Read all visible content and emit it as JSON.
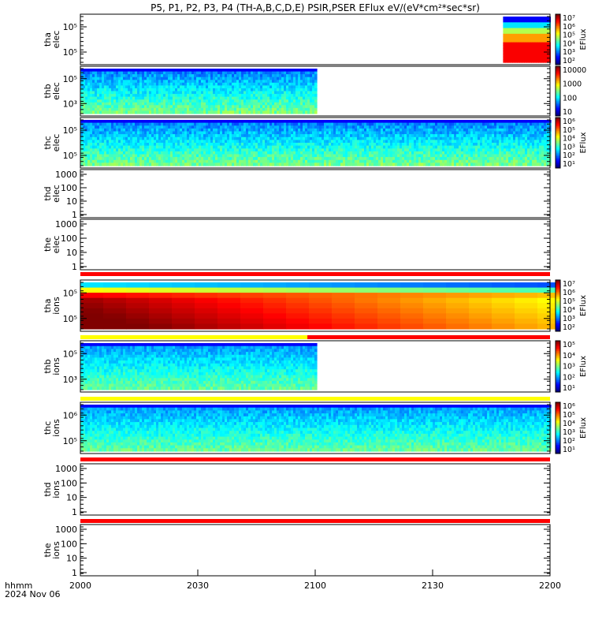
{
  "title": "P5, P1, P2, P3, P4 (TH-A,B,C,D,E) PSIR,PSER EFlux eV/(eV*cm²*sec*sr)",
  "chart_data": {
    "type": "heatmap",
    "title": "P5, P1, P2, P3, P4 (TH-A,B,C,D,E) PSIR,PSER EFlux eV/(eV*cm²*sec*sr)",
    "x": {
      "label_unit": "hhmm",
      "date": "2024 Nov 06",
      "ticks": [
        "2000",
        "2030",
        "2100",
        "2130",
        "2200"
      ]
    },
    "panels": [
      {
        "label1": "tha",
        "label2": "elec",
        "ticks": [
          "10⁵",
          "10⁵"
        ],
        "colorbar_ticks": [
          "10⁷",
          "10⁶",
          "10⁵",
          "10⁴",
          "10³",
          "10²"
        ],
        "colorbar_label": "EFlux",
        "data_coverage": "2148-2200",
        "status_bar": "none"
      },
      {
        "label1": "thb",
        "label2": "elec",
        "ticks": [
          "10⁵",
          "10³"
        ],
        "colorbar_ticks": [
          "10000",
          "1000",
          "100",
          "10"
        ],
        "colorbar_label": "",
        "data_coverage": "2000-2100",
        "status_bar": "none"
      },
      {
        "label1": "thc",
        "label2": "elec",
        "ticks": [
          "10⁵",
          "10⁵"
        ],
        "colorbar_ticks": [
          "10⁶",
          "10⁵",
          "10⁴",
          "10³",
          "10²",
          "10¹"
        ],
        "colorbar_label": "EFlux",
        "data_coverage": "2000-2200",
        "status_bar": "none"
      },
      {
        "label1": "thd",
        "label2": "elec",
        "ticks": [
          "1000",
          "100",
          "10",
          "1"
        ],
        "colorbar_ticks": [],
        "colorbar_label": "",
        "data_coverage": "none",
        "status_bar": "none"
      },
      {
        "label1": "the",
        "label2": "elec",
        "ticks": [
          "1000",
          "100",
          "10",
          "1"
        ],
        "colorbar_ticks": [],
        "colorbar_label": "",
        "data_coverage": "none",
        "status_bar": "red"
      },
      {
        "label1": "tha",
        "label2": "ions",
        "ticks": [
          "10⁵",
          "10⁵"
        ],
        "colorbar_ticks": [
          "10⁷",
          "10⁶",
          "10⁵",
          "10⁴",
          "10³",
          "10²"
        ],
        "colorbar_label": "EFlux",
        "data_coverage": "2000-2200",
        "status_bar": "yellow then red"
      },
      {
        "label1": "thb",
        "label2": "ions",
        "ticks": [
          "10⁵",
          "10³"
        ],
        "colorbar_ticks": [
          "10⁵",
          "10⁴",
          "10³",
          "10²",
          "10¹"
        ],
        "colorbar_label": "EFlux",
        "data_coverage": "2000-2100",
        "status_bar": "yellow"
      },
      {
        "label1": "thc",
        "label2": "ions",
        "ticks": [
          "10⁶",
          "10⁵"
        ],
        "colorbar_ticks": [
          "10⁶",
          "10⁵",
          "10⁴",
          "10³",
          "10²",
          "10¹"
        ],
        "colorbar_label": "EFlux",
        "data_coverage": "2000-2200",
        "status_bar": "red"
      },
      {
        "label1": "thd",
        "label2": "ions",
        "ticks": [
          "1000",
          "100",
          "10",
          "1"
        ],
        "colorbar_ticks": [],
        "colorbar_label": "",
        "data_coverage": "none",
        "status_bar": "red"
      },
      {
        "label1": "the",
        "label2": "ions",
        "ticks": [
          "1000",
          "100",
          "10",
          "1"
        ],
        "colorbar_ticks": [],
        "colorbar_label": "",
        "data_coverage": "none",
        "status_bar": "none"
      }
    ]
  }
}
